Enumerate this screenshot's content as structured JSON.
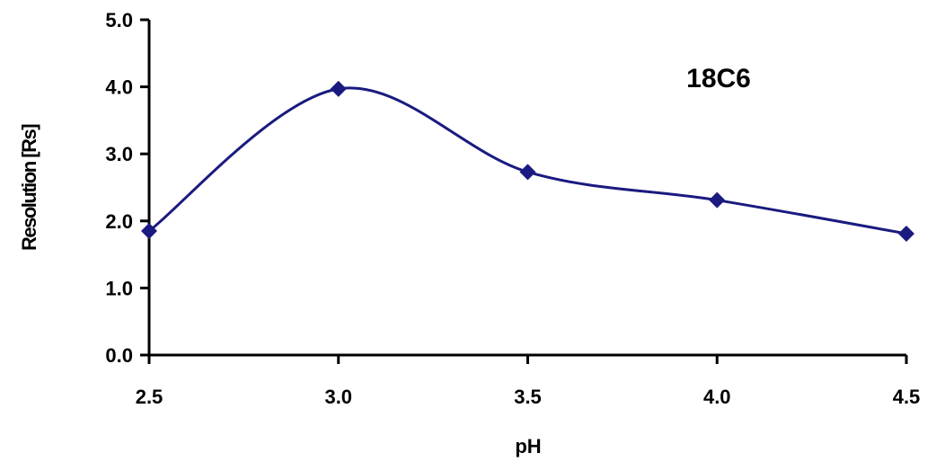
{
  "chart_data": {
    "type": "line",
    "title": "",
    "annotation": "18C6",
    "xlabel": "pH",
    "ylabel": "Resolution [Rs]",
    "xlim": [
      2.5,
      4.5
    ],
    "ylim": [
      0.0,
      5.0
    ],
    "x_ticks": [
      "2.5",
      "3.0",
      "3.5",
      "4.0",
      "4.5"
    ],
    "y_ticks": [
      "0.0",
      "1.0",
      "2.0",
      "3.0",
      "4.0",
      "5.0"
    ],
    "grid": false,
    "legend": "none",
    "marker": "diamond",
    "line_style": "smoothed",
    "color": "#1a1a80",
    "series": [
      {
        "x": [
          2.5,
          3.0,
          3.5,
          4.0,
          4.5
        ],
        "y": [
          1.85,
          3.97,
          2.73,
          2.31,
          1.81
        ]
      }
    ]
  }
}
